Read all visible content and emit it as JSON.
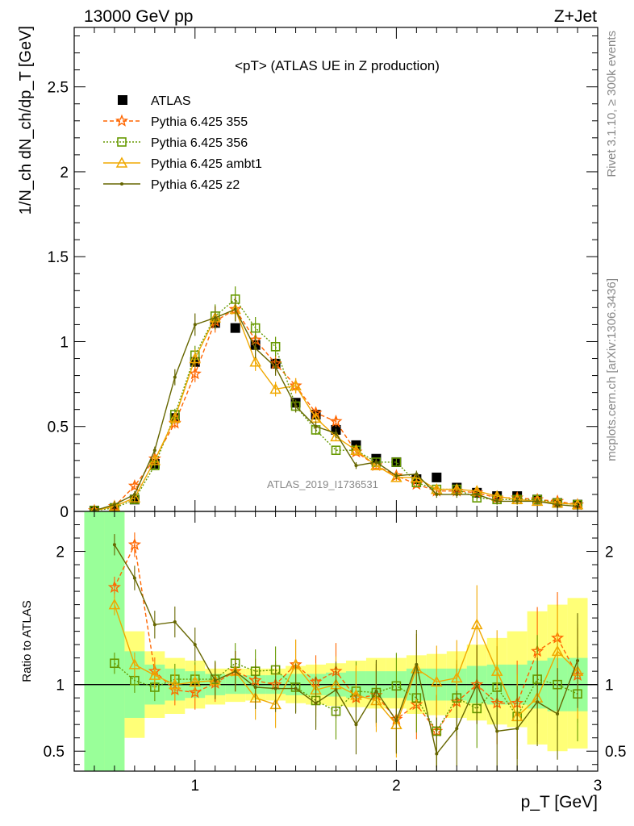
{
  "header": {
    "left": "13000 GeV pp",
    "right": "Z+Jet"
  },
  "side_text": {
    "rivet": "Rivet 3.1.10, ≥ 300k events",
    "mcplots": "mcplots.cern.ch [arXiv:1306.3436]"
  },
  "watermark": "ATLAS_2019_I1736531",
  "chart_data": [
    {
      "type": "line",
      "title": "<pT> (ATLAS UE in Z production)",
      "xlabel": "p_T [GeV]",
      "ylabel": "1/N_ch dN_ch/dp_T [GeV]",
      "xlim": [
        0.4,
        3.0
      ],
      "ylim": [
        0,
        2.85
      ],
      "yticks": [
        "0",
        "0.5",
        "1",
        "1.5",
        "2",
        "2.5"
      ],
      "xticks": [
        "1",
        "2",
        "3"
      ],
      "x": [
        0.5,
        0.6,
        0.7,
        0.8,
        0.9,
        1.0,
        1.1,
        1.2,
        1.3,
        1.4,
        1.5,
        1.6,
        1.7,
        1.8,
        1.9,
        2.0,
        2.1,
        2.2,
        2.3,
        2.4,
        2.5,
        2.6,
        2.7,
        2.8,
        2.9
      ],
      "legend_position": "top-left",
      "series": [
        {
          "name": "ATLAS",
          "color": "#000000",
          "marker": "square-filled",
          "values": [
            0.005,
            0.02,
            0.07,
            0.28,
            0.55,
            0.88,
            1.11,
            1.08,
            0.98,
            0.87,
            0.64,
            0.57,
            0.48,
            0.39,
            0.31,
            0.29,
            0.19,
            0.2,
            0.14,
            0.11,
            0.09,
            0.09,
            0.07,
            0.05,
            0.04
          ]
        },
        {
          "name": "Pythia 6.425 355",
          "color": "#ff6600",
          "marker": "star",
          "dash": "5,3",
          "values": [
            0.005,
            0.03,
            0.15,
            0.31,
            0.52,
            0.81,
            1.12,
            1.19,
            1.01,
            0.87,
            0.74,
            0.58,
            0.53,
            0.35,
            0.27,
            0.21,
            0.16,
            0.12,
            0.12,
            0.11,
            0.08,
            0.08,
            0.07,
            0.06,
            0.04
          ]
        },
        {
          "name": "Pythia 6.425 356",
          "color": "#669900",
          "marker": "square-open",
          "dash": "2,2",
          "values": [
            0.005,
            0.02,
            0.07,
            0.27,
            0.57,
            0.92,
            1.15,
            1.25,
            1.08,
            0.97,
            0.62,
            0.48,
            0.36,
            0.36,
            0.29,
            0.29,
            0.17,
            0.13,
            0.13,
            0.08,
            0.07,
            0.07,
            0.07,
            0.05,
            0.04
          ]
        },
        {
          "name": "Pythia 6.425 ambt1",
          "color": "#f0a800",
          "marker": "triangle-open",
          "dash": "",
          "values": [
            0.005,
            0.03,
            0.08,
            0.3,
            0.55,
            0.9,
            1.14,
            1.19,
            0.88,
            0.72,
            0.74,
            0.55,
            0.44,
            0.36,
            0.27,
            0.2,
            0.2,
            0.13,
            0.13,
            0.12,
            0.09,
            0.07,
            0.06,
            0.05,
            0.04
          ]
        },
        {
          "name": "Pythia 6.425 z2",
          "color": "#666600",
          "marker": "dot",
          "dash": "",
          "values": [
            0.005,
            0.04,
            0.1,
            0.36,
            0.79,
            1.1,
            1.14,
            1.19,
            0.96,
            0.85,
            0.62,
            0.5,
            0.46,
            0.27,
            0.29,
            0.21,
            0.22,
            0.1,
            0.1,
            0.1,
            0.06,
            0.06,
            0.06,
            0.04,
            0.03
          ]
        }
      ]
    },
    {
      "type": "line",
      "ylabel": "Ratio to ATLAS",
      "xlabel": "p_T [GeV]",
      "xlim": [
        0.4,
        3.0
      ],
      "ylim": [
        0.35,
        2.3
      ],
      "yticks": [
        "0.5",
        "1",
        "2"
      ],
      "xticks": [
        "1",
        "2",
        "3"
      ],
      "band_edges": [
        0.45,
        0.55,
        0.65,
        0.75,
        0.85,
        0.95,
        1.05,
        1.15,
        1.25,
        1.35,
        1.45,
        1.55,
        1.65,
        1.75,
        1.85,
        1.95,
        2.05,
        2.15,
        2.25,
        2.35,
        2.45,
        2.55,
        2.65,
        2.75,
        2.85,
        2.95
      ],
      "band_stat": [
        [
          0.2,
          2.3
        ],
        [
          0.3,
          2.3
        ],
        [
          0.75,
          1.25
        ],
        [
          0.85,
          1.15
        ],
        [
          0.88,
          1.12
        ],
        [
          0.9,
          1.1
        ],
        [
          0.92,
          1.08
        ],
        [
          0.93,
          1.07
        ],
        [
          0.93,
          1.07
        ],
        [
          0.93,
          1.07
        ],
        [
          0.92,
          1.08
        ],
        [
          0.92,
          1.08
        ],
        [
          0.91,
          1.09
        ],
        [
          0.9,
          1.1
        ],
        [
          0.9,
          1.1
        ],
        [
          0.9,
          1.1
        ],
        [
          0.88,
          1.12
        ],
        [
          0.88,
          1.12
        ],
        [
          0.88,
          1.12
        ],
        [
          0.86,
          1.14
        ],
        [
          0.85,
          1.15
        ],
        [
          0.85,
          1.15
        ],
        [
          0.82,
          1.18
        ],
        [
          0.8,
          1.2
        ],
        [
          0.8,
          1.2
        ]
      ],
      "band_total": [
        [
          0.2,
          2.3
        ],
        [
          0.35,
          2.3
        ],
        [
          0.6,
          1.4
        ],
        [
          0.75,
          1.25
        ],
        [
          0.78,
          1.2
        ],
        [
          0.82,
          1.18
        ],
        [
          0.85,
          1.12
        ],
        [
          0.87,
          1.12
        ],
        [
          0.88,
          1.12
        ],
        [
          0.88,
          1.12
        ],
        [
          0.86,
          1.14
        ],
        [
          0.85,
          1.15
        ],
        [
          0.84,
          1.16
        ],
        [
          0.83,
          1.18
        ],
        [
          0.82,
          1.2
        ],
        [
          0.82,
          1.2
        ],
        [
          0.78,
          1.22
        ],
        [
          0.77,
          1.23
        ],
        [
          0.75,
          1.25
        ],
        [
          0.73,
          1.3
        ],
        [
          0.7,
          1.35
        ],
        [
          0.68,
          1.4
        ],
        [
          0.55,
          1.55
        ],
        [
          0.5,
          1.6
        ],
        [
          0.52,
          1.65
        ]
      ],
      "x": [
        0.6,
        0.7,
        0.8,
        0.9,
        1.0,
        1.1,
        1.2,
        1.3,
        1.4,
        1.5,
        1.6,
        1.7,
        1.8,
        1.9,
        2.0,
        2.1,
        2.2,
        2.3,
        2.4,
        2.5,
        2.6,
        2.7,
        2.8,
        2.9
      ],
      "series": [
        {
          "name": "Pythia 6.425 355",
          "color": "#ff6600",
          "marker": "star",
          "dash": "5,3",
          "values": [
            1.73,
            2.05,
            1.1,
            0.96,
            0.94,
            1.01,
            1.1,
            1.03,
            1.0,
            1.15,
            1.02,
            1.1,
            0.9,
            0.92,
            0.74,
            0.85,
            0.65,
            0.87,
            1.0,
            0.86,
            0.86,
            1.25,
            1.35,
            1.07
          ]
        },
        {
          "name": "Pythia 6.425 356",
          "color": "#669900",
          "marker": "square-open",
          "dash": "2,2",
          "values": [
            1.16,
            1.03,
            0.98,
            1.04,
            1.04,
            1.04,
            1.16,
            1.1,
            1.11,
            0.98,
            0.88,
            0.8,
            0.95,
            0.94,
            0.99,
            0.9,
            0.65,
            0.9,
            0.82,
            0.98,
            0.76,
            1.04,
            1.0,
            0.93
          ]
        },
        {
          "name": "Pythia 6.425 ambt1",
          "color": "#f0a800",
          "marker": "triangle-open",
          "dash": "",
          "values": [
            1.6,
            1.15,
            1.07,
            1.0,
            1.02,
            1.03,
            1.1,
            0.9,
            0.85,
            1.15,
            0.96,
            1.0,
            0.92,
            0.88,
            0.7,
            1.12,
            1.02,
            1.05,
            1.45,
            1.1,
            0.76,
            0.9,
            1.25,
            1.1
          ]
        },
        {
          "name": "Pythia 6.425 z2",
          "color": "#666600",
          "marker": "dot",
          "dash": "",
          "values": [
            2.05,
            1.8,
            1.45,
            1.47,
            1.3,
            1.03,
            1.1,
            0.98,
            0.97,
            0.97,
            0.86,
            0.96,
            0.7,
            0.95,
            0.73,
            1.15,
            0.48,
            0.67,
            1.0,
            0.65,
            0.67,
            0.87,
            0.78,
            1.18
          ]
        }
      ]
    }
  ]
}
